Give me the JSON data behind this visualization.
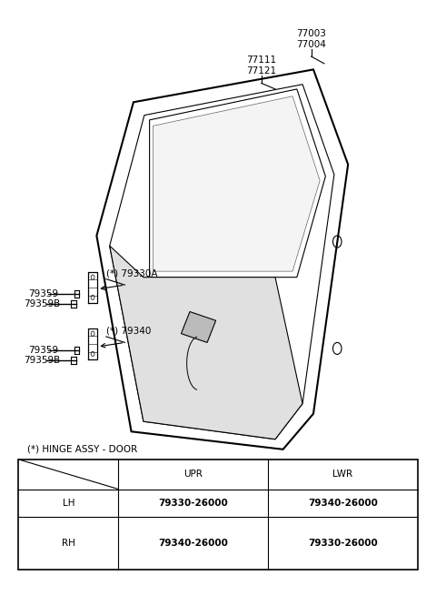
{
  "bg_color": "#ffffff",
  "fig_width": 4.8,
  "fig_height": 6.55,
  "dpi": 100,
  "table_note": "(*) HINGE ASSY - DOOR",
  "table_header": [
    "",
    "UPR",
    "LWR"
  ],
  "table_rows": [
    [
      "LH",
      "79330-26000",
      "79340-26000"
    ],
    [
      "RH",
      "79340-26000",
      "79330-26000"
    ]
  ],
  "line_color": "#000000",
  "text_color": "#000000",
  "label_77003_77004": "77003\n77004",
  "label_77111_77121": "77111\n77121",
  "label_79330A": "(*) 79330A",
  "label_79340": "(*) 79340",
  "label_79359": "79359",
  "label_79359B": "79359B",
  "font_size": 7.5
}
